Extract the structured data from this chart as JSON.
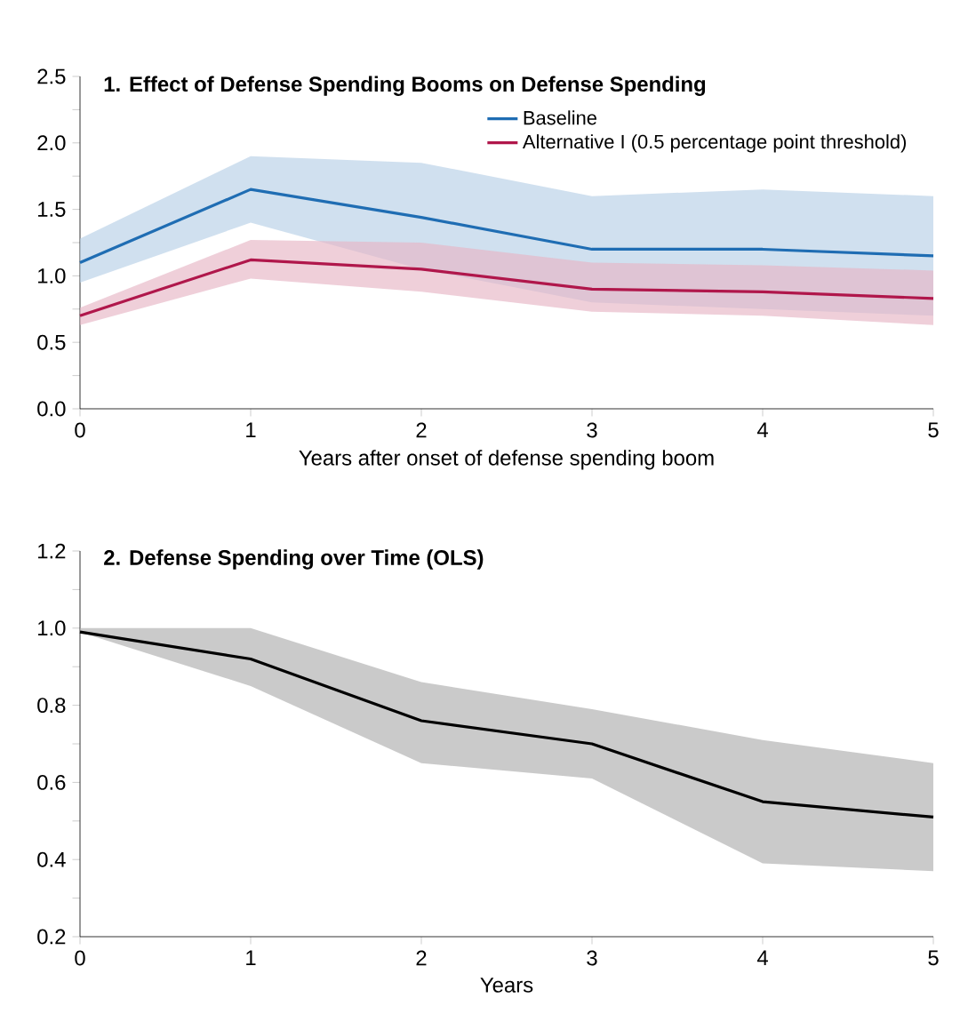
{
  "chart_data": [
    {
      "type": "line",
      "title": "1. Effect of Defense Spending Booms on Defense Spending",
      "xlabel": "Years after onset of defense spending boom",
      "x": [
        0,
        1,
        2,
        3,
        4,
        5
      ],
      "series": [
        {
          "name": "Baseline",
          "color": "#1f6db3",
          "values": [
            1.1,
            1.65,
            1.44,
            1.2,
            1.2,
            1.15
          ],
          "lower": [
            0.95,
            1.4,
            1.05,
            0.8,
            0.75,
            0.7
          ],
          "upper": [
            1.28,
            1.9,
            1.85,
            1.6,
            1.65,
            1.6
          ]
        },
        {
          "name": "Alternative I (0.5 percentage point threshold)",
          "color": "#b0174b",
          "values": [
            0.7,
            1.12,
            1.05,
            0.9,
            0.88,
            0.83
          ],
          "lower": [
            0.63,
            0.98,
            0.88,
            0.73,
            0.7,
            0.63
          ],
          "upper": [
            0.76,
            1.27,
            1.25,
            1.1,
            1.08,
            1.04
          ]
        }
      ],
      "xlim": [
        0,
        5
      ],
      "xticks": [
        0,
        1,
        2,
        3,
        4,
        5
      ],
      "ylim": [
        0,
        2.5
      ],
      "yticks": [
        {
          "value": 0,
          "label": "0.0"
        },
        {
          "value": 0.25,
          "label": null
        },
        0.5,
        {
          "value": 0.75,
          "label": null
        },
        {
          "value": 1,
          "label": "1.0"
        },
        {
          "value": 1.25,
          "label": null
        },
        1.5,
        {
          "value": 1.75,
          "label": null
        },
        {
          "value": 2,
          "label": "2.0"
        },
        {
          "value": 2.25,
          "label": null
        },
        2.5
      ],
      "grid": false,
      "legend": "top right",
      "line_style": "solid",
      "marker": "none"
    },
    {
      "type": "line",
      "title": "2. Defense Spending over Time (OLS)",
      "xlabel": "Years",
      "x": [
        0,
        1,
        2,
        3,
        4,
        5
      ],
      "series": [
        {
          "color": "#000000",
          "values": [
            0.99,
            0.92,
            0.76,
            0.7,
            0.55,
            0.51
          ],
          "lower": [
            0.99,
            0.85,
            0.65,
            0.61,
            0.39,
            0.37
          ],
          "upper": [
            1.0,
            1.0,
            0.86,
            0.79,
            0.71,
            0.65
          ]
        }
      ],
      "xlim": [
        0,
        5
      ],
      "xticks": [
        0,
        1,
        2,
        3,
        4,
        5
      ],
      "ylim": [
        0.2,
        1.2
      ],
      "yticks": [
        0.2,
        {
          "value": 0.3,
          "label": null
        },
        0.4,
        {
          "value": 0.5,
          "label": null
        },
        0.6,
        {
          "value": 0.7,
          "label": null
        },
        0.8,
        {
          "value": 0.9,
          "label": null
        },
        {
          "value": 1,
          "label": "1.0"
        },
        {
          "value": 1.1,
          "label": null
        },
        1.2
      ],
      "grid": false,
      "legend": false,
      "line_style": "solid",
      "marker": "none"
    }
  ]
}
